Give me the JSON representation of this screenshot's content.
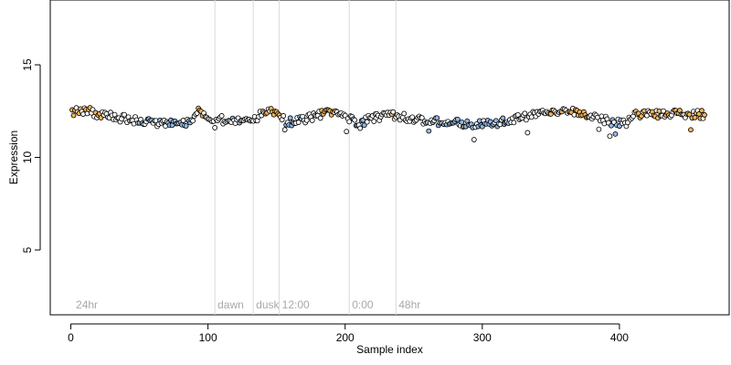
{
  "chart_data": {
    "type": "scatter",
    "xlabel": "Sample index",
    "ylabel": "Expression",
    "xlim": [
      -15,
      480
    ],
    "ylim": [
      1.5,
      18.5
    ],
    "x_ticks": [
      0,
      100,
      200,
      300,
      400
    ],
    "y_ticks": [
      5,
      10,
      15
    ],
    "x_tick_labels": [
      "0",
      "100",
      "200",
      "300",
      "400"
    ],
    "y_tick_labels": [
      "5",
      "10",
      "15"
    ],
    "grid": false,
    "legend": "none",
    "colors": {
      "point_outline": "#000000",
      "warm_fill": "#f0b35a",
      "cool_fill": "#8fb8e8",
      "neutral_fill": "#ffffff",
      "separator_line": "#d9d9d9",
      "annotation_text": "#a8a8a8"
    },
    "markers": [
      {
        "x": 105,
        "label": "dawn"
      },
      {
        "x": 133,
        "label": "dusk"
      },
      {
        "x": 152,
        "label": "12:00"
      },
      {
        "x": 203,
        "label": "0:00"
      },
      {
        "x": 237,
        "label": "48hr"
      }
    ],
    "start_label": {
      "x": 3,
      "label": "24hr"
    },
    "profile": {
      "n_points": 462,
      "x_start": 1,
      "x_end": 462,
      "knots_x": [
        0,
        10,
        20,
        30,
        45,
        60,
        75,
        88,
        92,
        100,
        110,
        120,
        133,
        143,
        150,
        157,
        168,
        180,
        190,
        200,
        210,
        220,
        235,
        250,
        265,
        280,
        295,
        310,
        325,
        340,
        355,
        365,
        375,
        385,
        395,
        405,
        412,
        420,
        440,
        462
      ],
      "knots_y": [
        12.45,
        12.55,
        12.35,
        12.2,
        12.05,
        11.9,
        11.85,
        11.95,
        12.55,
        12.2,
        12.05,
        11.95,
        12.1,
        12.45,
        12.55,
        11.9,
        12.0,
        12.3,
        12.45,
        12.25,
        11.75,
        12.15,
        12.3,
        12.05,
        11.95,
        11.85,
        11.8,
        11.85,
        12.1,
        12.3,
        12.4,
        12.55,
        12.35,
        12.1,
        11.9,
        11.8,
        12.35,
        12.3,
        12.35,
        12.3
      ]
    }
  }
}
